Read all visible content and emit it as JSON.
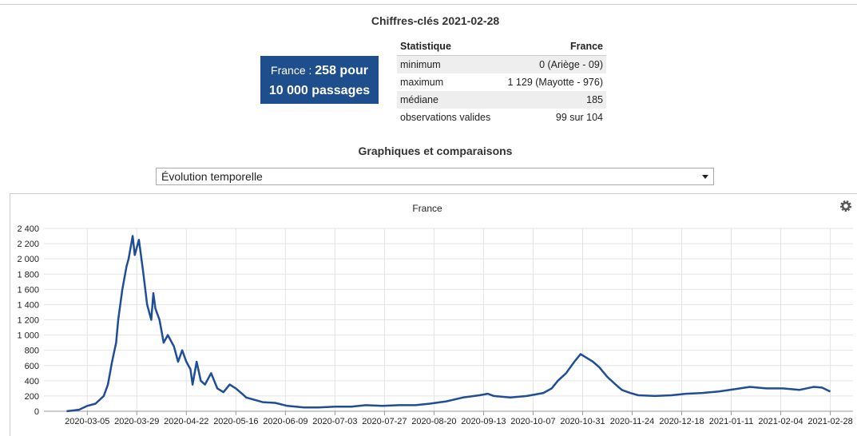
{
  "header": {
    "title": "Chiffres-clés 2021-02-28"
  },
  "summary": {
    "prefix": "France :",
    "value": "258 pour",
    "suffix": "10 000 passages"
  },
  "table": {
    "headers": [
      "Statistique",
      "France"
    ],
    "rows": [
      [
        "minimum",
        "0 (Ariège - 09)"
      ],
      [
        "maximum",
        "1 129 (Mayotte - 976)"
      ],
      [
        "médiane",
        "185"
      ],
      [
        "observations valides",
        "99 sur 104"
      ]
    ]
  },
  "section": {
    "title": "Graphiques et comparaisons"
  },
  "dropdown": {
    "selected": "Évolution temporelle"
  },
  "chart_data": {
    "type": "line",
    "title": "France",
    "color": "#1f4e96",
    "grid": true,
    "xlim": [
      "2020-02-13",
      "2021-03-11"
    ],
    "xticks": [
      "2020-03-05",
      "2020-03-29",
      "2020-04-22",
      "2020-05-16",
      "2020-06-09",
      "2020-07-03",
      "2020-07-27",
      "2020-08-20",
      "2020-09-13",
      "2020-10-07",
      "2020-10-31",
      "2020-11-24",
      "2020-12-18",
      "2021-01-11",
      "2021-02-04",
      "2021-02-28"
    ],
    "ylim": [
      0,
      2400
    ],
    "yticks": [
      0,
      200,
      400,
      600,
      800,
      {
        "value": 1000,
        "label": "1 000"
      },
      {
        "value": 1200,
        "label": "1 200"
      },
      {
        "value": 1400,
        "label": "1 400"
      },
      {
        "value": 1600,
        "label": "1 600"
      },
      {
        "value": 1800,
        "label": "1 800"
      },
      {
        "value": 2000,
        "label": "2 000"
      },
      {
        "value": 2200,
        "label": "2 200"
      },
      {
        "value": 2400,
        "label": "2 400"
      }
    ],
    "series": [
      {
        "name": "France",
        "color": "#1f4e96",
        "x": [
          "2020-02-24",
          "2020-03-01",
          "2020-03-05",
          "2020-03-09",
          "2020-03-13",
          "2020-03-15",
          "2020-03-17",
          "2020-03-19",
          "2020-03-20",
          "2020-03-22",
          "2020-03-24",
          "2020-03-25",
          "2020-03-27",
          "2020-03-28",
          "2020-03-30",
          "2020-04-01",
          "2020-04-03",
          "2020-04-05",
          "2020-04-06",
          "2020-04-07",
          "2020-04-09",
          "2020-04-11",
          "2020-04-13",
          "2020-04-16",
          "2020-04-18",
          "2020-04-20",
          "2020-04-22",
          "2020-04-24",
          "2020-04-25",
          "2020-04-27",
          "2020-04-29",
          "2020-05-01",
          "2020-05-04",
          "2020-05-07",
          "2020-05-10",
          "2020-05-13",
          "2020-05-16",
          "2020-05-19",
          "2020-05-21",
          "2020-05-25",
          "2020-05-29",
          "2020-06-04",
          "2020-06-10",
          "2020-06-18",
          "2020-06-25",
          "2020-07-03",
          "2020-07-11",
          "2020-07-18",
          "2020-07-26",
          "2020-08-03",
          "2020-08-11",
          "2020-08-18",
          "2020-08-26",
          "2020-09-03",
          "2020-09-11",
          "2020-09-15",
          "2020-09-18",
          "2020-09-26",
          "2020-10-04",
          "2020-10-12",
          "2020-10-16",
          "2020-10-19",
          "2020-10-23",
          "2020-10-27",
          "2020-10-30",
          "2020-11-02",
          "2020-11-05",
          "2020-11-08",
          "2020-11-12",
          "2020-11-16",
          "2020-11-19",
          "2020-11-23",
          "2020-11-27",
          "2020-12-05",
          "2020-12-13",
          "2020-12-20",
          "2020-12-28",
          "2021-01-05",
          "2021-01-13",
          "2021-01-20",
          "2021-01-28",
          "2021-02-05",
          "2021-02-13",
          "2021-02-20",
          "2021-02-24",
          "2021-02-28"
        ],
        "values": [
          0,
          20,
          70,
          100,
          200,
          350,
          650,
          900,
          1200,
          1600,
          1900,
          2000,
          2300,
          2050,
          2250,
          1850,
          1400,
          1200,
          1550,
          1350,
          1200,
          900,
          1000,
          850,
          650,
          800,
          650,
          550,
          350,
          650,
          400,
          350,
          500,
          300,
          250,
          350,
          300,
          230,
          180,
          150,
          120,
          110,
          70,
          50,
          50,
          60,
          60,
          80,
          70,
          80,
          80,
          100,
          130,
          180,
          210,
          230,
          200,
          180,
          200,
          240,
          300,
          400,
          500,
          650,
          750,
          700,
          650,
          580,
          450,
          350,
          280,
          240,
          210,
          200,
          210,
          230,
          240,
          260,
          290,
          320,
          300,
          300,
          280,
          320,
          310,
          258
        ]
      }
    ]
  }
}
